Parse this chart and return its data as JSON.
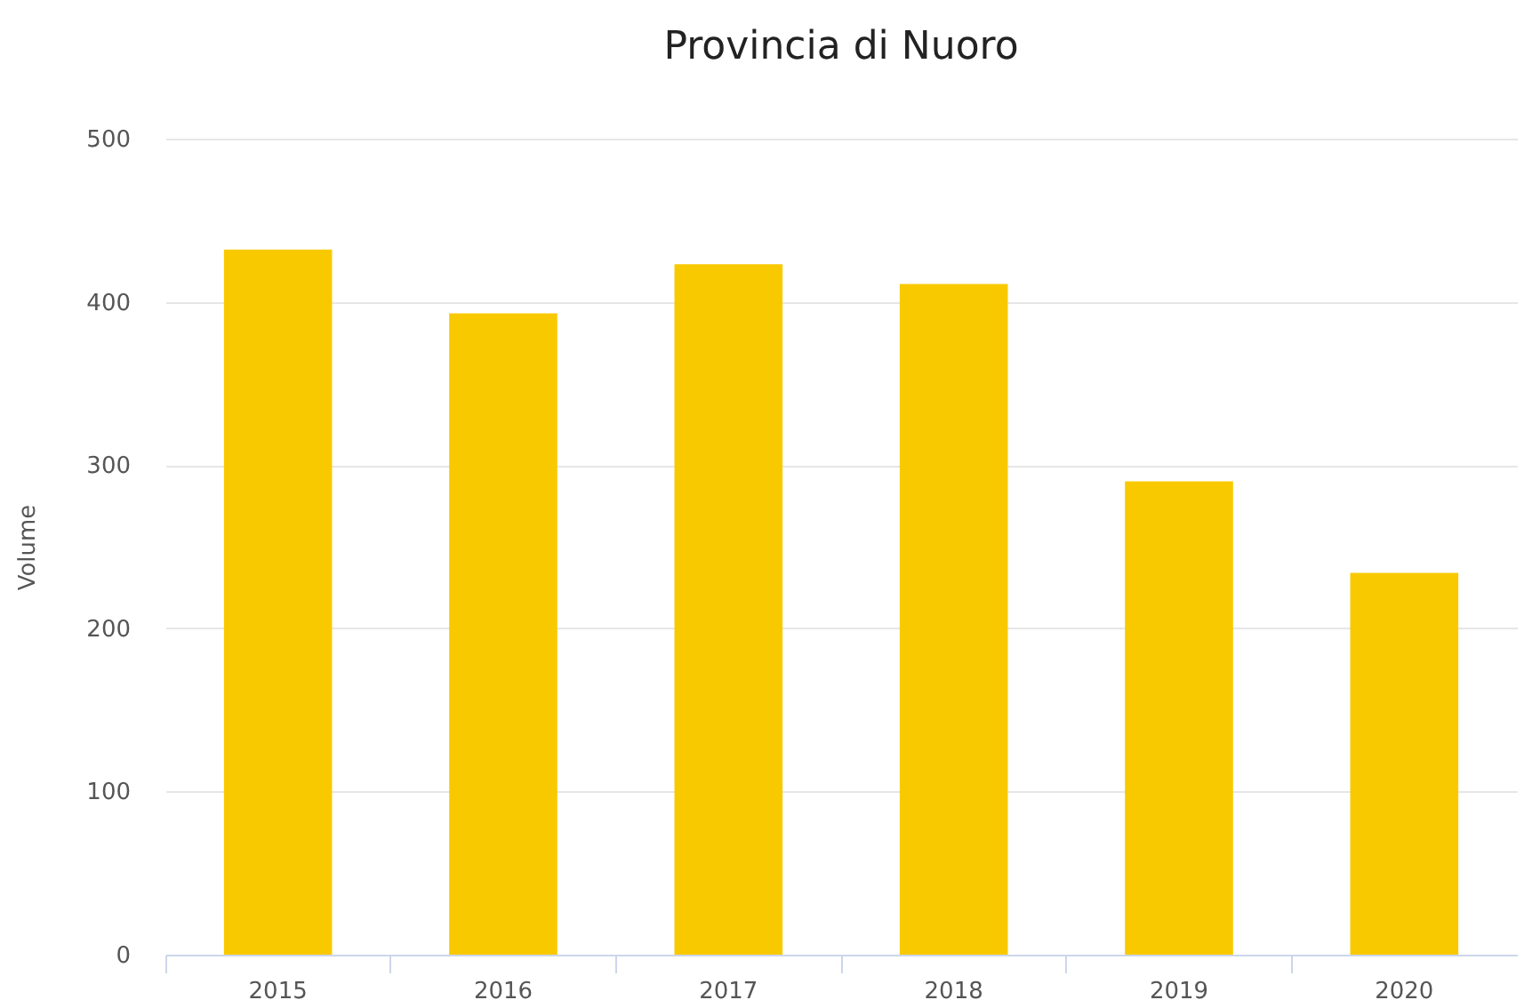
{
  "chart_data": {
    "type": "bar",
    "title": "Provincia di Nuoro",
    "ylabel": "Volume",
    "categories": [
      "2015",
      "2016",
      "2017",
      "2018",
      "2019",
      "2020"
    ],
    "values": [
      432,
      393,
      423,
      411,
      290,
      234
    ],
    "color": "#f9c900",
    "ylim": [
      0,
      500
    ],
    "yticks": [
      0,
      100,
      200,
      300,
      400,
      500
    ],
    "grid": "y"
  }
}
